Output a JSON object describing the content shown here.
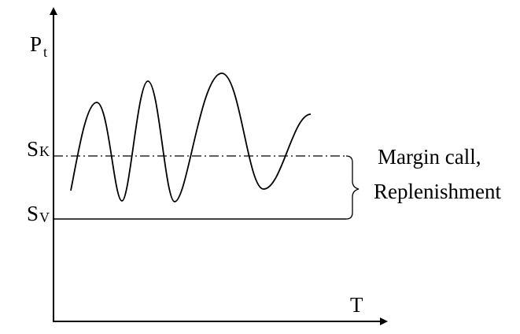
{
  "axes": {
    "y_label": {
      "main": "P",
      "sub": "t"
    },
    "x_label": "T"
  },
  "levels": [
    {
      "main": "S",
      "sub": "K"
    },
    {
      "main": "S",
      "sub": "V"
    }
  ],
  "annotation": {
    "lines": [
      "Margin call,",
      "Replenishment"
    ]
  }
}
